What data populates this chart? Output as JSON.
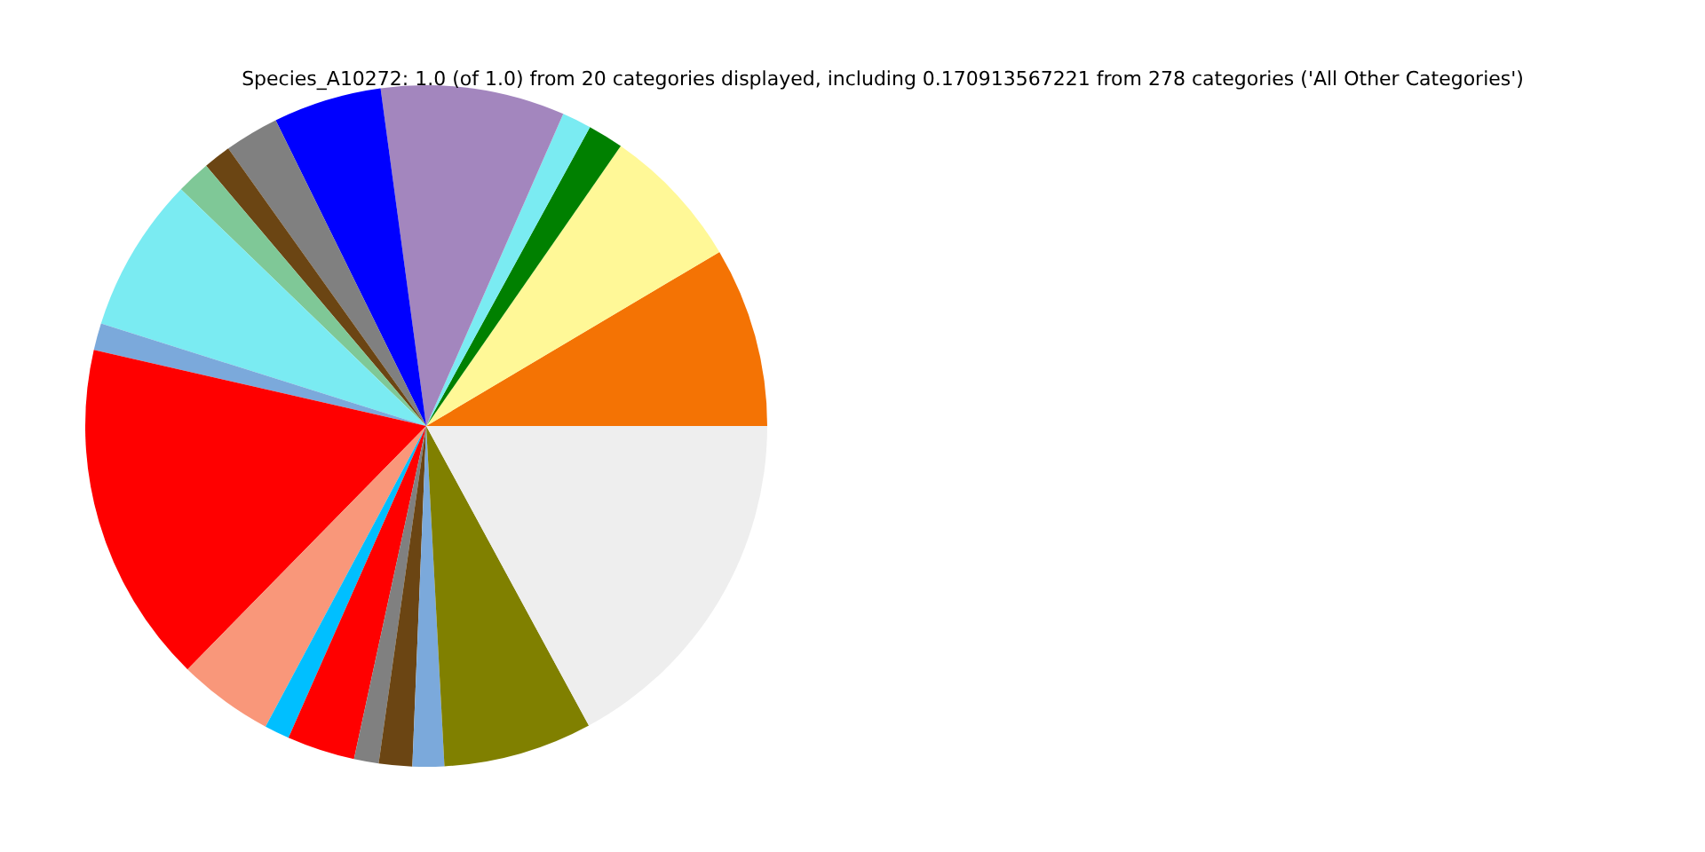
{
  "chart_data": {
    "type": "pie",
    "title": "Species_A10272: 1.0 (of 1.0) from 20 categories displayed, including 0.170913567221 from 278 categories ('All Other Categories')",
    "categories": [
      null,
      null,
      null,
      null,
      null,
      null,
      null,
      null,
      null,
      null,
      null,
      null,
      null,
      null,
      null,
      null,
      null,
      null,
      null,
      null
    ],
    "values": [
      8.53,
      6.81,
      1.69,
      1.39,
      8.72,
      5.14,
      2.58,
      1.31,
      1.61,
      7.36,
      1.28,
      16.24,
      4.53,
      1.19,
      3.22,
      1.17,
      1.58,
      1.5,
      7.06,
      17.09
    ],
    "colors": [
      "#f47304",
      "#fff897",
      "#008000",
      "#7aebf2",
      "#a386be",
      "#0000ff",
      "#808080",
      "#6b4513",
      "#7fc897",
      "#7aebf2",
      "#7ba9db",
      "#ff0000",
      "#f9977a",
      "#00bfff",
      "#ff0000",
      "#808080",
      "#6b4513",
      "#7ba9db",
      "#808000",
      "#eeeeee"
    ]
  }
}
